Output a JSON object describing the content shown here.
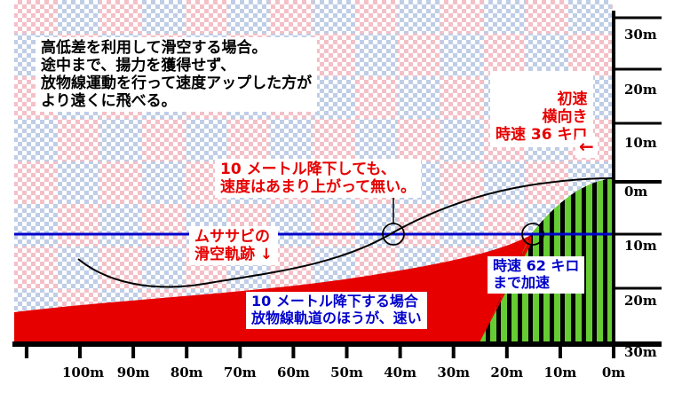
{
  "texts": {
    "intro": "高低差を利用して滑空する場合。\n途中まで、揚力を獲得せず、\n放物線運動を行って速度アップした方が\nより遠くに飛べる。",
    "initial_speed": "初速\n横向き\n時速 36 キロ",
    "arrow_left": "←",
    "drop_note": "10 メートル降下しても、\n速度はあまり上がって無い。",
    "glide_label": "ムササビの\n滑空軌跡 ↓",
    "accel_label": "時速 62 キロ\nまで加速",
    "parabola_note": "10 メートル降下する場合\n放物線軌道のほうが、速い"
  },
  "x_axis": {
    "labels": [
      "100m",
      "90m",
      "80m",
      "70m",
      "60m",
      "50m",
      "40m",
      "30m",
      "20m",
      "10m",
      "0m"
    ]
  },
  "y_axis": {
    "labels": [
      "30m",
      "20m",
      "10m",
      "0m",
      "10m",
      "20m",
      "30m"
    ]
  },
  "colors": {
    "red": "#e60000",
    "blue": "#0000cc",
    "green": "#66cc33",
    "black": "#000000",
    "checker_pink": "#f6c9cf",
    "checker_blue": "#c9d2e6"
  }
}
